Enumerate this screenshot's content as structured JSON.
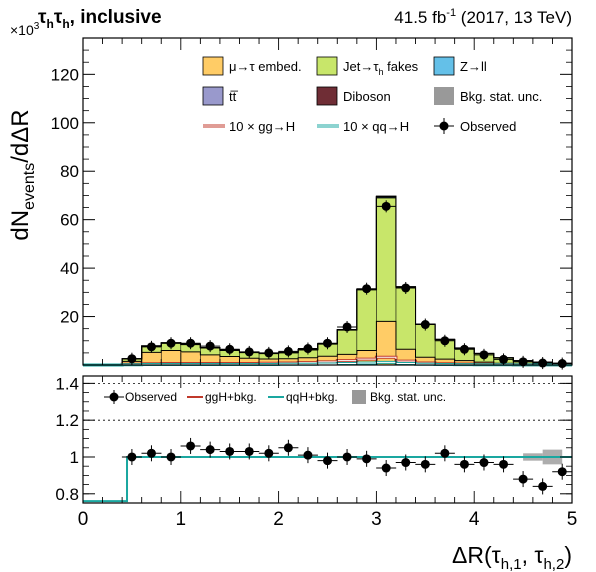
{
  "header": {
    "channel_left": "τ",
    "channel_sub1": "h",
    "channel_mid": "τ",
    "channel_sub2": "h",
    "channel_rest": ", inclusive",
    "lumi_value": "41.5 fb",
    "lumi_sup": "-1",
    "lumi_rest": " (2017, 13 TeV)"
  },
  "main_axis": {
    "exponent_prefix": "×10",
    "exponent_sup": "3",
    "ylabel_a": "dN",
    "ylabel_sub": "events",
    "ylabel_b": "/dΔR"
  },
  "ratio_axis": {
    "xlabel_a": "ΔR(τ",
    "xlabel_sub1": "h,1",
    "xlabel_mid": ", τ",
    "xlabel_sub2": "h,2",
    "xlabel_b": ")"
  },
  "legend_main": [
    {
      "label": "μ→τ embed.",
      "color": "#ffcc66",
      "kind": "fill"
    },
    {
      "label": "Jet→τ",
      "sub": "h",
      "label_after": " fakes",
      "color": "#c8e66a",
      "kind": "fill"
    },
    {
      "label": "Z→ll",
      "color": "#64c0e8",
      "kind": "fill"
    },
    {
      "label": "tt̅",
      "color": "#9999cc",
      "kind": "fill"
    },
    {
      "label": "Diboson",
      "color": "#6f2d35",
      "kind": "fill"
    },
    {
      "label": "Bkg. stat. unc.",
      "color": "#999999",
      "kind": "unc"
    },
    {
      "label": "10 × gg→H",
      "color": "#c0392b",
      "kind": "line"
    },
    {
      "label": "10 × qq→H",
      "color": "#1aa7a0",
      "kind": "line"
    },
    {
      "label": "Observed",
      "color": "#000000",
      "kind": "marker"
    }
  ],
  "legend_ratio": [
    {
      "label": "Observed",
      "kind": "marker",
      "color": "#000000"
    },
    {
      "label": "ggH+bkg.",
      "kind": "line",
      "color": "#c0392b"
    },
    {
      "label": "qqH+bkg.",
      "kind": "line",
      "color": "#1aa7a0"
    },
    {
      "label": "Bkg. stat. unc.",
      "kind": "unc",
      "color": "#999999"
    }
  ],
  "chart_data": [
    {
      "type": "bar",
      "stacked": true,
      "bin_edges": [
        0.0,
        0.4,
        0.5,
        0.6,
        0.7,
        0.8,
        0.9,
        1.0,
        1.1,
        1.2,
        1.3,
        1.4,
        1.5,
        1.6,
        1.7,
        1.8,
        1.9,
        2.0,
        2.1,
        2.2,
        2.3,
        2.4,
        2.5,
        2.6,
        2.7,
        2.8,
        2.9,
        3.0,
        3.1,
        3.2,
        3.3,
        3.4,
        3.5,
        3.6,
        3.7,
        3.8,
        3.9,
        4.0,
        4.1,
        4.2,
        4.3,
        4.4,
        4.5,
        4.6,
        4.7,
        4.8,
        4.9,
        5.0
      ],
      "stack_bin_edges": [
        0.0,
        0.4,
        0.6,
        0.8,
        1.0,
        1.2,
        1.4,
        1.6,
        1.8,
        2.0,
        2.2,
        2.4,
        2.6,
        2.8,
        3.0,
        3.2,
        3.4,
        3.6,
        3.8,
        4.0,
        4.2,
        4.4,
        4.6,
        4.8,
        5.0
      ],
      "series": [
        {
          "name": "μ→τ embed.",
          "color": "#ffcc66",
          "values": [
            0,
            1.5,
            5.2,
            6.0,
            5.4,
            4.2,
            3.5,
            2.8,
            2.5,
            2.6,
            3.0,
            3.6,
            4.4,
            6.0,
            18.0,
            6.5,
            3.2,
            2.4,
            1.8,
            1.2,
            0.7,
            0.4,
            0.3,
            0.1
          ]
        },
        {
          "name": "Jet→τh fakes",
          "color": "#c8e66a",
          "values": [
            0,
            1.0,
            2.5,
            3.0,
            3.0,
            2.8,
            2.5,
            2.3,
            2.2,
            2.4,
            3.2,
            5.0,
            10.0,
            25.0,
            51.0,
            25.5,
            13.5,
            8.0,
            5.0,
            3.5,
            2.2,
            1.3,
            0.8,
            0.5
          ]
        },
        {
          "name": "Z→ll",
          "color": "#64c0e8",
          "values": [
            0,
            0.05,
            0.1,
            0.1,
            0.1,
            0.1,
            0.1,
            0.1,
            0.1,
            0.1,
            0.1,
            0.1,
            0.1,
            0.2,
            0.4,
            0.2,
            0.1,
            0.1,
            0.1,
            0.05,
            0.05,
            0.05,
            0.05,
            0.05
          ]
        },
        {
          "name": "tt̅",
          "color": "#9999cc",
          "values": [
            0,
            0.05,
            0.1,
            0.1,
            0.1,
            0.1,
            0.1,
            0.1,
            0.1,
            0.1,
            0.1,
            0.1,
            0.1,
            0.1,
            0.2,
            0.1,
            0.1,
            0.1,
            0.1,
            0.05,
            0.05,
            0.05,
            0.05,
            0.05
          ]
        },
        {
          "name": "Diboson",
          "color": "#6f2d35",
          "values": [
            0,
            0.02,
            0.05,
            0.05,
            0.05,
            0.05,
            0.05,
            0.05,
            0.05,
            0.05,
            0.05,
            0.05,
            0.05,
            0.05,
            0.1,
            0.05,
            0.05,
            0.05,
            0.05,
            0.02,
            0.02,
            0.02,
            0.02,
            0.02
          ]
        }
      ],
      "signal_gg": [
        0,
        0.3,
        0.5,
        0.6,
        0.6,
        0.6,
        0.6,
        0.6,
        0.7,
        0.8,
        1.0,
        1.3,
        1.8,
        2.4,
        3.2,
        1.6,
        0.8,
        0.5,
        0.4,
        0.3,
        0.2,
        0.1,
        0.1,
        0.1
      ],
      "signal_qq": [
        0,
        0.1,
        0.2,
        0.2,
        0.2,
        0.2,
        0.2,
        0.2,
        0.2,
        0.3,
        0.3,
        0.4,
        0.6,
        0.8,
        1.1,
        0.6,
        0.3,
        0.2,
        0.15,
        0.1,
        0.1,
        0.05,
        0.05,
        0.05
      ],
      "observed": {
        "x": [
          0.5,
          0.7,
          0.9,
          1.1,
          1.3,
          1.5,
          1.7,
          1.9,
          2.1,
          2.3,
          2.5,
          2.7,
          2.9,
          3.1,
          3.3,
          3.5,
          3.7,
          3.9,
          4.1,
          4.3,
          4.5,
          4.7,
          4.9
        ],
        "y": [
          2.6,
          7.5,
          9.0,
          9.0,
          7.8,
          6.5,
          5.4,
          5.0,
          5.6,
          6.8,
          9.0,
          15.7,
          31.5,
          65.5,
          31.8,
          16.7,
          10.0,
          6.5,
          4.2,
          2.3,
          1.3,
          0.8,
          0.6
        ]
      },
      "xlim": [
        0,
        5
      ],
      "ylim": [
        0,
        135
      ],
      "yticks": [
        20,
        40,
        60,
        80,
        100,
        120
      ],
      "legend_placement": "top-right"
    },
    {
      "type": "scatter",
      "observed": {
        "x": [
          0.5,
          0.7,
          0.9,
          1.1,
          1.3,
          1.5,
          1.7,
          1.9,
          2.1,
          2.3,
          2.5,
          2.7,
          2.9,
          3.1,
          3.3,
          3.5,
          3.7,
          3.9,
          4.1,
          4.3,
          4.5,
          4.7,
          4.9
        ],
        "y": [
          1.0,
          1.02,
          1.0,
          1.06,
          1.04,
          1.03,
          1.03,
          1.02,
          1.05,
          1.01,
          0.98,
          1.0,
          0.99,
          0.94,
          0.97,
          0.96,
          1.02,
          0.96,
          0.97,
          0.96,
          0.88,
          0.84,
          0.92
        ]
      },
      "ggH_bkg": {
        "edges": [
          0.0,
          0.4,
          0.45,
          5.0
        ],
        "values": [
          0.76,
          0.76,
          1.0
        ]
      },
      "qqH_bkg": {
        "edges": [
          0.0,
          0.4,
          0.45,
          5.0
        ],
        "values": [
          0.76,
          0.76,
          1.0
        ]
      },
      "unc": {
        "x": [
          4.6,
          4.8
        ],
        "half_width": 0.1,
        "lo": [
          0.98,
          0.96
        ],
        "hi": [
          1.02,
          1.04
        ]
      },
      "xlim": [
        0,
        5
      ],
      "ylim": [
        0.75,
        1.44
      ],
      "yticks": [
        0.8,
        1.0,
        1.2,
        1.4
      ],
      "ytick_labels": [
        "0.8",
        "1",
        "1.2",
        "1.4"
      ],
      "xticks": [
        0,
        1,
        2,
        3,
        4,
        5
      ],
      "xtick_labels": [
        "0",
        "1",
        "2",
        "3",
        "4",
        "5"
      ],
      "grid": "dashed horizontal at 1.2 and 1.4",
      "legend_placement": "top-left"
    }
  ]
}
